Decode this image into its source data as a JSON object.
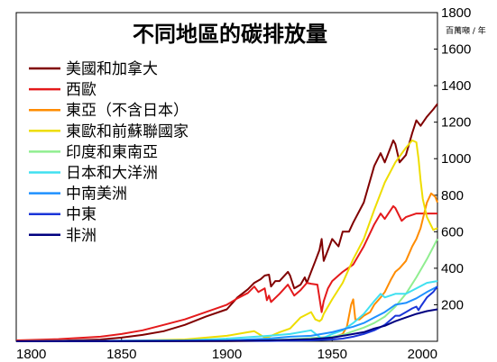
{
  "chart_data": {
    "type": "line",
    "title": "不同地區的碳排放量",
    "ylabel": "百萬噸 / 年",
    "xlim": [
      1800,
      2000
    ],
    "ylim": [
      0,
      1800
    ],
    "xticks": [
      1800,
      1850,
      1900,
      1950,
      2000
    ],
    "yticks": [
      200,
      400,
      600,
      800,
      1000,
      1200,
      1400,
      1600,
      1800
    ],
    "grid": false,
    "legend_position": "top-left",
    "series": [
      {
        "name": "美國和加拿大",
        "color": "#800000",
        "x": [
          1800,
          1820,
          1840,
          1850,
          1860,
          1870,
          1880,
          1890,
          1900,
          1905,
          1910,
          1913,
          1916,
          1918,
          1920,
          1921,
          1923,
          1925,
          1929,
          1930,
          1932,
          1935,
          1937,
          1938,
          1940,
          1942,
          1944,
          1945,
          1946,
          1948,
          1950,
          1953,
          1955,
          1958,
          1960,
          1965,
          1970,
          1973,
          1975,
          1977,
          1979,
          1980,
          1982,
          1985,
          1988,
          1990,
          1992,
          1995,
          1998,
          2000
        ],
        "y": [
          0,
          3,
          10,
          20,
          35,
          55,
          90,
          135,
          175,
          240,
          285,
          320,
          340,
          360,
          365,
          300,
          330,
          330,
          380,
          360,
          290,
          310,
          350,
          320,
          380,
          440,
          500,
          560,
          440,
          500,
          560,
          520,
          600,
          600,
          650,
          760,
          960,
          1030,
          980,
          1040,
          1100,
          1080,
          980,
          1020,
          1140,
          1210,
          1180,
          1230,
          1270,
          1300
        ]
      },
      {
        "name": "西歐",
        "color": "#e41a1c",
        "x": [
          1800,
          1820,
          1840,
          1850,
          1860,
          1870,
          1880,
          1890,
          1900,
          1905,
          1910,
          1913,
          1915,
          1918,
          1919,
          1920,
          1921,
          1925,
          1929,
          1930,
          1932,
          1935,
          1938,
          1940,
          1943,
          1945,
          1946,
          1948,
          1950,
          1955,
          1960,
          1965,
          1970,
          1973,
          1975,
          1979,
          1980,
          1983,
          1985,
          1990,
          1995,
          2000
        ],
        "y": [
          5,
          12,
          25,
          40,
          60,
          90,
          120,
          160,
          200,
          235,
          265,
          300,
          270,
          290,
          225,
          250,
          215,
          260,
          310,
          290,
          250,
          280,
          320,
          315,
          310,
          160,
          220,
          290,
          330,
          380,
          420,
          520,
          640,
          700,
          670,
          740,
          730,
          660,
          680,
          700,
          700,
          700
        ]
      },
      {
        "name": "東亞（不含日本）",
        "color": "#ff8c00",
        "x": [
          1800,
          1850,
          1900,
          1930,
          1940,
          1945,
          1950,
          1955,
          1957,
          1959,
          1960,
          1961,
          1963,
          1965,
          1968,
          1970,
          1973,
          1975,
          1978,
          1980,
          1982,
          1985,
          1988,
          1990,
          1992,
          1995,
          1997,
          1999,
          2000
        ],
        "y": [
          0,
          0,
          0,
          5,
          10,
          15,
          20,
          40,
          80,
          200,
          230,
          120,
          120,
          140,
          160,
          200,
          240,
          270,
          340,
          380,
          400,
          440,
          520,
          560,
          620,
          760,
          810,
          790,
          760
        ]
      },
      {
        "name": "東歐和前蘇聯國家",
        "color": "#eedd00",
        "x": [
          1800,
          1850,
          1880,
          1900,
          1910,
          1913,
          1918,
          1920,
          1925,
          1930,
          1935,
          1940,
          1942,
          1944,
          1945,
          1946,
          1948,
          1950,
          1955,
          1960,
          1965,
          1970,
          1975,
          1980,
          1985,
          1988,
          1990,
          1991,
          1992,
          1993,
          1995,
          1998,
          2000
        ],
        "y": [
          0,
          2,
          10,
          30,
          50,
          55,
          20,
          25,
          50,
          70,
          130,
          160,
          120,
          110,
          120,
          150,
          190,
          230,
          320,
          450,
          560,
          720,
          870,
          980,
          1060,
          1100,
          1090,
          1000,
          880,
          780,
          680,
          610,
          620
        ]
      },
      {
        "name": "印度和東南亞",
        "color": "#90ee90",
        "x": [
          1800,
          1900,
          1930,
          1950,
          1955,
          1960,
          1965,
          1970,
          1975,
          1980,
          1985,
          1990,
          1995,
          2000
        ],
        "y": [
          0,
          5,
          10,
          25,
          35,
          55,
          75,
          100,
          135,
          190,
          260,
          350,
          450,
          560
        ]
      },
      {
        "name": "日本和大洋洲",
        "color": "#40e0f0",
        "x": [
          1800,
          1880,
          1900,
          1920,
          1930,
          1940,
          1945,
          1950,
          1955,
          1960,
          1965,
          1970,
          1973,
          1975,
          1980,
          1985,
          1990,
          1995,
          2000
        ],
        "y": [
          0,
          5,
          15,
          30,
          40,
          60,
          15,
          40,
          60,
          100,
          150,
          220,
          260,
          240,
          260,
          260,
          290,
          320,
          330
        ]
      },
      {
        "name": "中南美洲",
        "color": "#1e90ff",
        "x": [
          1800,
          1900,
          1920,
          1930,
          1940,
          1950,
          1955,
          1960,
          1965,
          1970,
          1975,
          1980,
          1985,
          1990,
          1995,
          2000
        ],
        "y": [
          0,
          5,
          15,
          25,
          30,
          50,
          65,
          80,
          100,
          130,
          160,
          200,
          210,
          235,
          270,
          300
        ]
      },
      {
        "name": "中東",
        "color": "#1a35d8",
        "x": [
          1800,
          1920,
          1940,
          1950,
          1955,
          1960,
          1965,
          1970,
          1975,
          1978,
          1980,
          1982,
          1985,
          1988,
          1990,
          1991,
          1992,
          1995,
          1998,
          2000
        ],
        "y": [
          0,
          2,
          5,
          10,
          15,
          25,
          40,
          60,
          90,
          120,
          140,
          140,
          160,
          180,
          190,
          170,
          190,
          240,
          270,
          300
        ]
      },
      {
        "name": "非洲",
        "color": "#000080",
        "x": [
          1800,
          1900,
          1920,
          1940,
          1950,
          1955,
          1960,
          1965,
          1970,
          1975,
          1980,
          1985,
          1990,
          1995,
          2000
        ],
        "y": [
          0,
          2,
          5,
          12,
          20,
          30,
          40,
          50,
          70,
          85,
          110,
          130,
          150,
          165,
          175
        ]
      }
    ]
  }
}
